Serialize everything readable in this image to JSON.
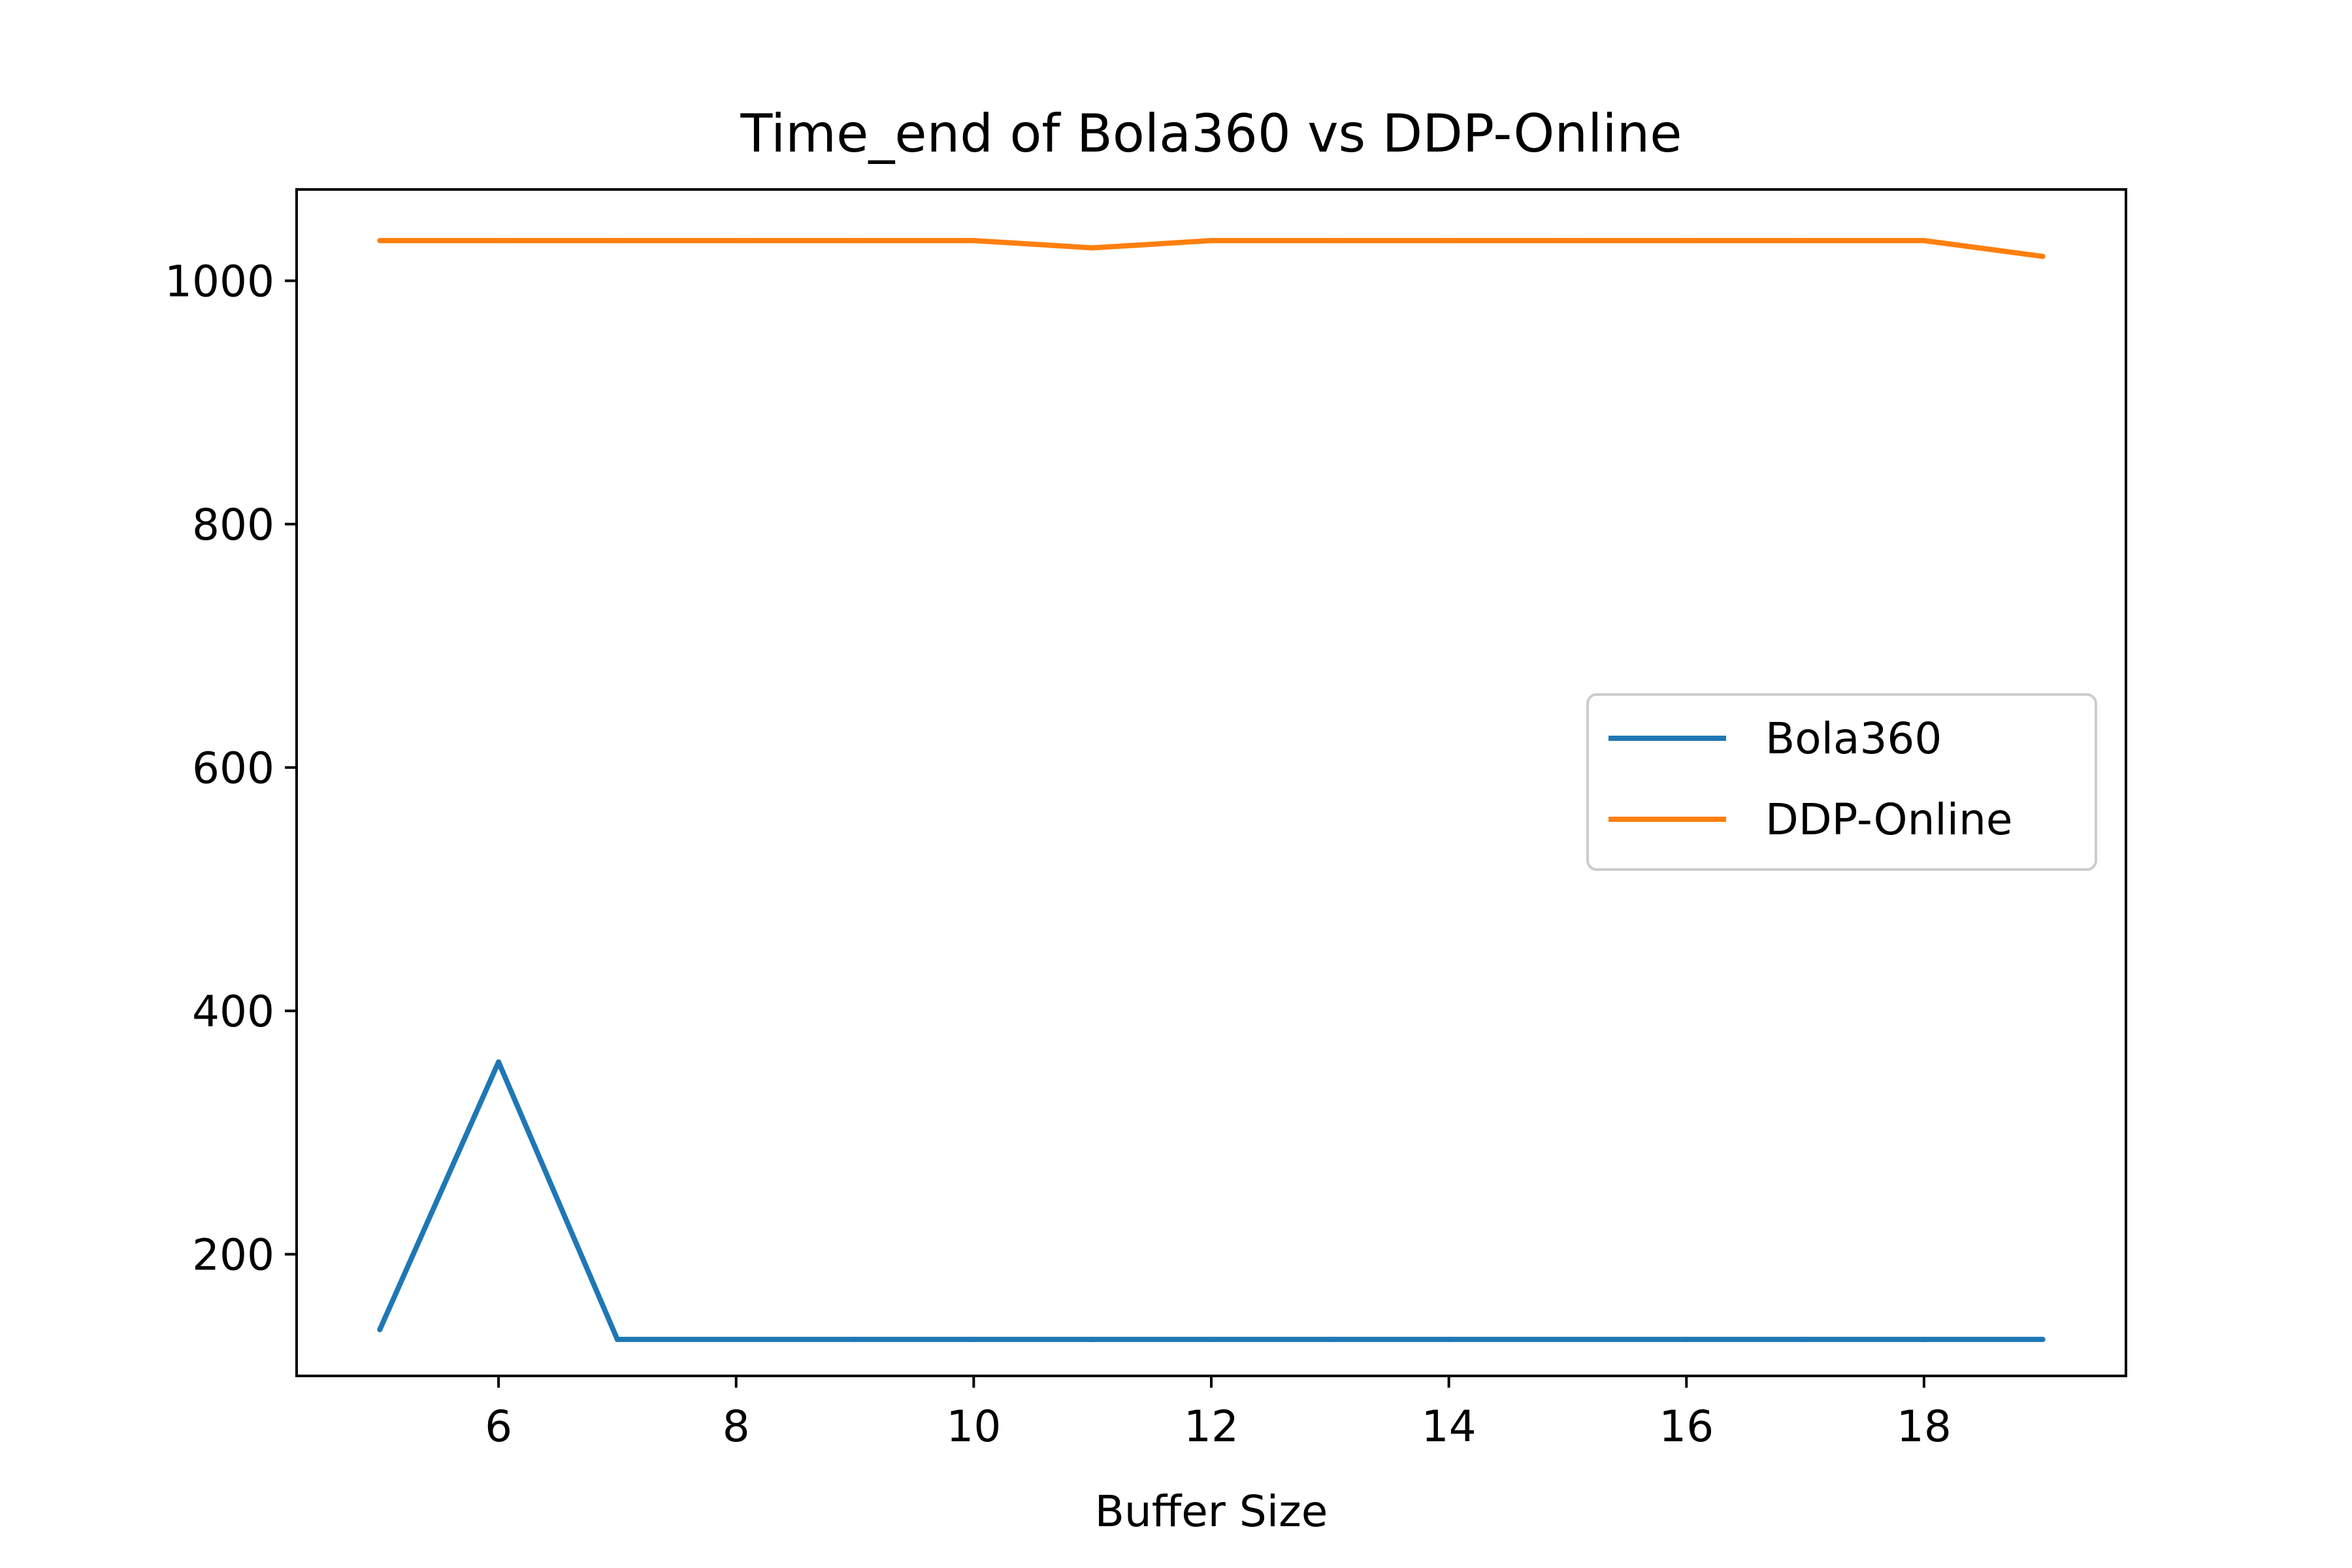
{
  "chart_data": {
    "type": "line",
    "title": "Time_end of Bola360 vs DDP-Online",
    "xlabel": "Buffer Size",
    "ylabel": "",
    "xlim": [
      4.3,
      19.7
    ],
    "ylim": [
      100,
      1075
    ],
    "xticks": [
      6,
      8,
      10,
      12,
      14,
      16,
      18
    ],
    "yticks": [
      200,
      400,
      600,
      800,
      1000
    ],
    "grid": false,
    "legend_position": "center-right",
    "x": [
      5,
      6,
      7,
      8,
      9,
      10,
      11,
      12,
      13,
      14,
      15,
      16,
      17,
      18,
      19
    ],
    "series": [
      {
        "name": "Bola360",
        "color": "#1f77b4",
        "values": [
          138,
          358,
          130,
          130,
          130,
          130,
          130,
          130,
          130,
          130,
          130,
          130,
          130,
          130,
          130
        ]
      },
      {
        "name": "DDP-Online",
        "color": "#ff7f0e",
        "values": [
          1033,
          1033,
          1033,
          1033,
          1033,
          1033,
          1027,
          1033,
          1033,
          1033,
          1033,
          1033,
          1033,
          1033,
          1020
        ]
      }
    ]
  }
}
